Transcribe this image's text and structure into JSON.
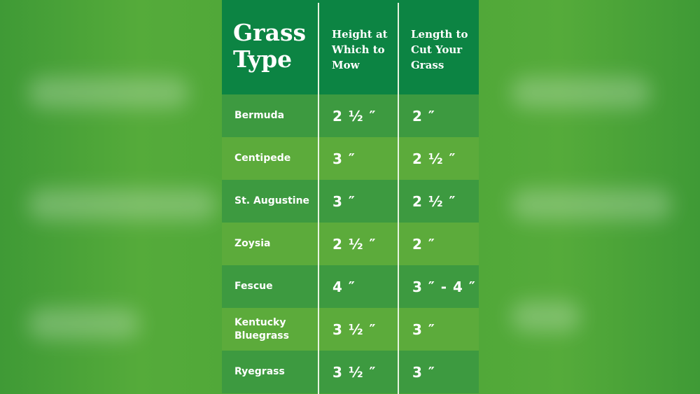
{
  "table": {
    "headers": [
      "Grass Type",
      "Height at Which to Mow",
      "Length to Cut Your Grass"
    ],
    "header_lines": {
      "col1": [
        "Grass",
        "Type"
      ],
      "col2": [
        "Height at",
        "Which to",
        "Mow"
      ],
      "col3": [
        "Length to",
        "Cut Your",
        "Grass"
      ]
    },
    "rows": [
      {
        "grass": "Bermuda",
        "height": "2 ½ ″",
        "cut": "2 ″"
      },
      {
        "grass": "Centipede",
        "height": "3 ″",
        "cut": "2 ½ ″"
      },
      {
        "grass": "St. Augustine",
        "height": "3 ″",
        "cut": "2 ½ ″"
      },
      {
        "grass": "Zoysia",
        "height": "2 ½ ″",
        "cut": "2 ″"
      },
      {
        "grass": "Fescue",
        "height": "4 ″",
        "cut": "3 ″ - 4 ″"
      },
      {
        "grass": "Kentucky Bluegrass",
        "height": "3 ½ ″",
        "cut": "3 ″"
      },
      {
        "grass": "Ryegrass",
        "height": "3 ½ ″",
        "cut": "3 ″"
      }
    ]
  },
  "colors": {
    "header": "#0c8443",
    "row_dark": "#3d9a40",
    "row_light": "#5cab3b",
    "background": "#4aa437"
  }
}
